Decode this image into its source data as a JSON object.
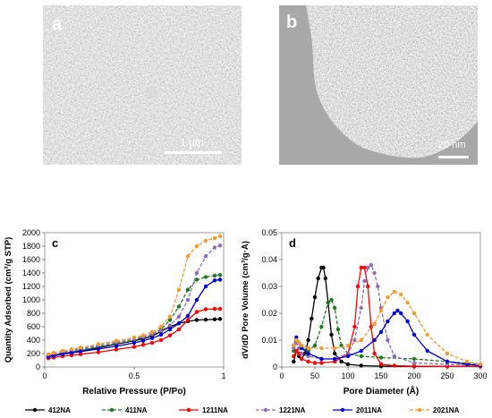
{
  "panels": {
    "a": {
      "letter": "a",
      "scale_label": "1 μm"
    },
    "b": {
      "letter": "b",
      "scale_label": "20 nm"
    }
  },
  "chart_data": [
    {
      "type": "line",
      "letter": "c",
      "xlabel": "Relative Pressure (P/Po)",
      "ylabel": "Quantity Adsorbed (cm³/g STP)",
      "xlim": [
        0,
        1
      ],
      "ylim": [
        0,
        2000
      ],
      "xticks": [
        0,
        0.5,
        1
      ],
      "xtick_labels": [
        "0",
        "0.5",
        "1"
      ],
      "yticks": [
        0,
        200,
        400,
        600,
        800,
        1000,
        1200,
        1400,
        1600,
        1800,
        2000
      ],
      "grid": false,
      "series": [
        {
          "name": "412NA",
          "color": "#000000",
          "dash": "none",
          "x": [
            0.02,
            0.05,
            0.1,
            0.15,
            0.2,
            0.3,
            0.4,
            0.5,
            0.55,
            0.6,
            0.65,
            0.7,
            0.75,
            0.8,
            0.85,
            0.9,
            0.95,
            0.98
          ],
          "y": [
            150,
            170,
            200,
            220,
            240,
            290,
            340,
            390,
            420,
            460,
            530,
            600,
            650,
            680,
            700,
            705,
            710,
            715
          ]
        },
        {
          "name": "411NA",
          "color": "#1e7a1e",
          "dash": "4,2",
          "x": [
            0.02,
            0.05,
            0.1,
            0.15,
            0.2,
            0.3,
            0.4,
            0.5,
            0.55,
            0.6,
            0.65,
            0.7,
            0.75,
            0.8,
            0.85,
            0.9,
            0.95,
            0.98
          ],
          "y": [
            160,
            180,
            210,
            230,
            250,
            300,
            350,
            400,
            440,
            490,
            560,
            700,
            900,
            1150,
            1300,
            1340,
            1360,
            1370
          ]
        },
        {
          "name": "1211NA",
          "color": "#ff0000",
          "dash": "none",
          "x": [
            0.02,
            0.05,
            0.1,
            0.15,
            0.2,
            0.3,
            0.4,
            0.5,
            0.55,
            0.6,
            0.65,
            0.7,
            0.75,
            0.8,
            0.85,
            0.9,
            0.95,
            0.98
          ],
          "y": [
            130,
            140,
            160,
            175,
            190,
            220,
            260,
            300,
            330,
            360,
            400,
            470,
            560,
            700,
            820,
            860,
            865,
            865
          ]
        },
        {
          "name": "1221NA",
          "color": "#8e6cb8",
          "dash": "4,2",
          "x": [
            0.02,
            0.05,
            0.1,
            0.15,
            0.2,
            0.3,
            0.4,
            0.5,
            0.55,
            0.6,
            0.65,
            0.7,
            0.75,
            0.8,
            0.85,
            0.9,
            0.95,
            0.98
          ],
          "y": [
            170,
            190,
            220,
            245,
            270,
            320,
            370,
            420,
            450,
            490,
            540,
            620,
            750,
            1000,
            1400,
            1650,
            1780,
            1810
          ]
        },
        {
          "name": "2011NA",
          "color": "#0000dd",
          "dash": "none",
          "x": [
            0.02,
            0.05,
            0.1,
            0.15,
            0.2,
            0.3,
            0.4,
            0.5,
            0.55,
            0.6,
            0.65,
            0.7,
            0.75,
            0.8,
            0.85,
            0.9,
            0.95,
            0.98
          ],
          "y": [
            150,
            165,
            190,
            210,
            230,
            270,
            310,
            360,
            390,
            430,
            480,
            560,
            650,
            760,
            1000,
            1200,
            1290,
            1300
          ]
        },
        {
          "name": "2021NA",
          "color": "#f59a2e",
          "dash": "4,2",
          "x": [
            0.02,
            0.05,
            0.1,
            0.15,
            0.2,
            0.3,
            0.4,
            0.5,
            0.55,
            0.6,
            0.65,
            0.7,
            0.75,
            0.8,
            0.85,
            0.9,
            0.95,
            0.98
          ],
          "y": [
            190,
            210,
            240,
            265,
            290,
            340,
            390,
            440,
            470,
            520,
            600,
            750,
            1150,
            1650,
            1800,
            1880,
            1920,
            1950
          ]
        }
      ]
    },
    {
      "type": "line",
      "letter": "d",
      "xlabel": "Pore Diameter (Å)",
      "ylabel": "dV/dD Pore Volume (cm³/g·Å)",
      "xlim": [
        0,
        300
      ],
      "ylim": [
        0,
        0.05
      ],
      "xticks": [
        0,
        50,
        100,
        150,
        200,
        250,
        300
      ],
      "xtick_labels": [
        "0",
        "50",
        "100",
        "150",
        "200",
        "250",
        "300"
      ],
      "yticks": [
        0,
        0.01,
        0.02,
        0.03,
        0.04,
        0.05
      ],
      "ytick_labels": [
        "0",
        "0.01",
        "0.02",
        "0.03",
        "0.04",
        "0.05"
      ],
      "grid": false,
      "series": [
        {
          "name": "412NA",
          "color": "#000000",
          "dash": "none",
          "x": [
            18,
            22,
            26,
            30,
            35,
            40,
            45,
            50,
            55,
            60,
            63,
            66,
            70,
            75,
            80,
            90,
            100,
            120,
            150,
            200,
            250,
            300
          ],
          "y": [
            0.002,
            0.006,
            0.004,
            0.003,
            0.005,
            0.01,
            0.018,
            0.026,
            0.033,
            0.037,
            0.037,
            0.033,
            0.024,
            0.012,
            0.005,
            0.002,
            0.001,
            0.0005,
            0.0003,
            0.0002,
            0.0002,
            0.0002
          ]
        },
        {
          "name": "411NA",
          "color": "#1e7a1e",
          "dash": "4,2",
          "x": [
            18,
            22,
            26,
            30,
            40,
            50,
            60,
            70,
            75,
            80,
            85,
            90,
            100,
            120,
            150,
            200,
            250,
            300
          ],
          "y": [
            0.006,
            0.01,
            0.009,
            0.007,
            0.006,
            0.008,
            0.015,
            0.024,
            0.025,
            0.022,
            0.014,
            0.008,
            0.005,
            0.004,
            0.0035,
            0.003,
            0.002,
            0.001
          ]
        },
        {
          "name": "1211NA",
          "color": "#ff0000",
          "dash": "none",
          "x": [
            18,
            22,
            26,
            30,
            40,
            50,
            60,
            80,
            100,
            110,
            115,
            120,
            125,
            130,
            135,
            140,
            150,
            170,
            200,
            250,
            300
          ],
          "y": [
            0.004,
            0.006,
            0.005,
            0.003,
            0.002,
            0.0015,
            0.0015,
            0.002,
            0.005,
            0.015,
            0.03,
            0.037,
            0.037,
            0.03,
            0.015,
            0.005,
            0.001,
            0.0005,
            0.0003,
            0.0002,
            0.0002
          ]
        },
        {
          "name": "1221NA",
          "color": "#8e6cb8",
          "dash": "4,2",
          "x": [
            18,
            22,
            26,
            30,
            40,
            60,
            80,
            100,
            110,
            120,
            125,
            130,
            135,
            140,
            145,
            150,
            160,
            170,
            200,
            250,
            300
          ],
          "y": [
            0.007,
            0.009,
            0.007,
            0.005,
            0.004,
            0.003,
            0.003,
            0.005,
            0.01,
            0.022,
            0.032,
            0.037,
            0.038,
            0.035,
            0.03,
            0.022,
            0.01,
            0.004,
            0.0015,
            0.001,
            0.0005
          ]
        },
        {
          "name": "2011NA",
          "color": "#0000dd",
          "dash": "none",
          "x": [
            18,
            22,
            26,
            30,
            40,
            60,
            80,
            100,
            120,
            140,
            150,
            160,
            170,
            175,
            180,
            190,
            200,
            220,
            250,
            280,
            300
          ],
          "y": [
            0.008,
            0.011,
            0.009,
            0.007,
            0.005,
            0.003,
            0.003,
            0.004,
            0.006,
            0.01,
            0.013,
            0.017,
            0.02,
            0.021,
            0.02,
            0.017,
            0.012,
            0.006,
            0.002,
            0.001,
            0.0005
          ]
        },
        {
          "name": "2021NA",
          "color": "#f59a2e",
          "dash": "4,2",
          "x": [
            18,
            22,
            26,
            30,
            40,
            60,
            80,
            100,
            120,
            140,
            150,
            160,
            170,
            180,
            190,
            200,
            220,
            250,
            280,
            300
          ],
          "y": [
            0.008,
            0.01,
            0.009,
            0.008,
            0.007,
            0.007,
            0.007,
            0.008,
            0.01,
            0.016,
            0.021,
            0.026,
            0.028,
            0.027,
            0.024,
            0.02,
            0.012,
            0.005,
            0.002,
            0.001
          ]
        }
      ]
    }
  ]
}
